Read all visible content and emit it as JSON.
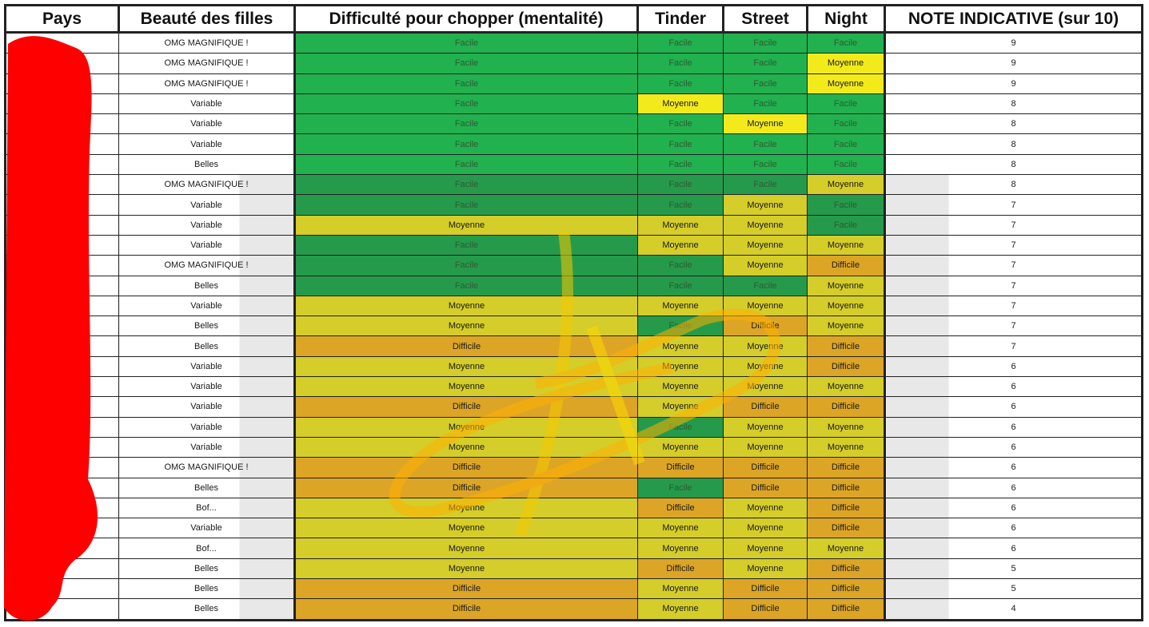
{
  "headers": [
    "Pays",
    "Beauté des filles",
    "Difficulté pour chopper (mentalité)",
    "Tinder",
    "Street",
    "Night",
    "NOTE INDICATIVE (sur 10)"
  ],
  "colors": {
    "facile": "#22b14f",
    "moyenne": "#f3ea1c",
    "difficile": "#dca526",
    "redaction": "#ff0000"
  },
  "rows": [
    [
      "",
      "OMG MAGNIFIQUE !",
      "Facile",
      "Facile",
      "Facile",
      "Facile",
      "9"
    ],
    [
      "",
      "OMG MAGNIFIQUE !",
      "Facile",
      "Facile",
      "Facile",
      "Moyenne",
      "9"
    ],
    [
      "",
      "OMG MAGNIFIQUE !",
      "Facile",
      "Facile",
      "Facile",
      "Moyenne",
      "9"
    ],
    [
      "",
      "Variable",
      "Facile",
      "Moyenne",
      "Facile",
      "Facile",
      "8"
    ],
    [
      "",
      "Variable",
      "Facile",
      "Facile",
      "Moyenne",
      "Facile",
      "8"
    ],
    [
      "",
      "Variable",
      "Facile",
      "Facile",
      "Facile",
      "Facile",
      "8"
    ],
    [
      "",
      "Belles",
      "Facile",
      "Facile",
      "Facile",
      "Facile",
      "8"
    ],
    [
      "",
      "OMG MAGNIFIQUE !",
      "Facile",
      "Facile",
      "Facile",
      "Moyenne",
      "8"
    ],
    [
      "",
      "Variable",
      "Facile",
      "Facile",
      "Moyenne",
      "Facile",
      "7"
    ],
    [
      "",
      "Variable",
      "Moyenne",
      "Moyenne",
      "Moyenne",
      "Facile",
      "7"
    ],
    [
      "",
      "Variable",
      "Facile",
      "Moyenne",
      "Moyenne",
      "Moyenne",
      "7"
    ],
    [
      "",
      "OMG MAGNIFIQUE !",
      "Facile",
      "Facile",
      "Moyenne",
      "Difficile",
      "7"
    ],
    [
      "",
      "Belles",
      "Facile",
      "Facile",
      "Facile",
      "Moyenne",
      "7"
    ],
    [
      "",
      "Variable",
      "Moyenne",
      "Moyenne",
      "Moyenne",
      "Moyenne",
      "7"
    ],
    [
      "",
      "Belles",
      "Moyenne",
      "Facile",
      "Difficile",
      "Moyenne",
      "7"
    ],
    [
      "",
      "Belles",
      "Difficile",
      "Moyenne",
      "Moyenne",
      "Difficile",
      "7"
    ],
    [
      "",
      "Variable",
      "Moyenne",
      "Moyenne",
      "Moyenne",
      "Difficile",
      "6"
    ],
    [
      "",
      "Variable",
      "Moyenne",
      "Moyenne",
      "Moyenne",
      "Moyenne",
      "6"
    ],
    [
      "",
      "Variable",
      "Difficile",
      "Moyenne",
      "Difficile",
      "Difficile",
      "6"
    ],
    [
      "",
      "Variable",
      "Moyenne",
      "Facile",
      "Moyenne",
      "Moyenne",
      "6"
    ],
    [
      "",
      "Variable",
      "Moyenne",
      "Moyenne",
      "Moyenne",
      "Moyenne",
      "6"
    ],
    [
      "",
      "OMG MAGNIFIQUE !",
      "Difficile",
      "Difficile",
      "Difficile",
      "Difficile",
      "6"
    ],
    [
      "",
      "Belles",
      "Difficile",
      "Facile",
      "Difficile",
      "Difficile",
      "6"
    ],
    [
      "",
      "Bof...",
      "Moyenne",
      "Difficile",
      "Moyenne",
      "Difficile",
      "6"
    ],
    [
      "",
      "Variable",
      "Moyenne",
      "Moyenne",
      "Moyenne",
      "Difficile",
      "6"
    ],
    [
      "",
      "Bof...",
      "Moyenne",
      "Moyenne",
      "Moyenne",
      "Moyenne",
      "6"
    ],
    [
      "",
      "Belles",
      "Moyenne",
      "Difficile",
      "Moyenne",
      "Difficile",
      "5"
    ],
    [
      "",
      "Belles",
      "Difficile",
      "Moyenne",
      "Difficile",
      "Difficile",
      "5"
    ],
    [
      "",
      "Belles",
      "Difficile",
      "Moyenne",
      "Difficile",
      "Difficile",
      "4"
    ]
  ]
}
